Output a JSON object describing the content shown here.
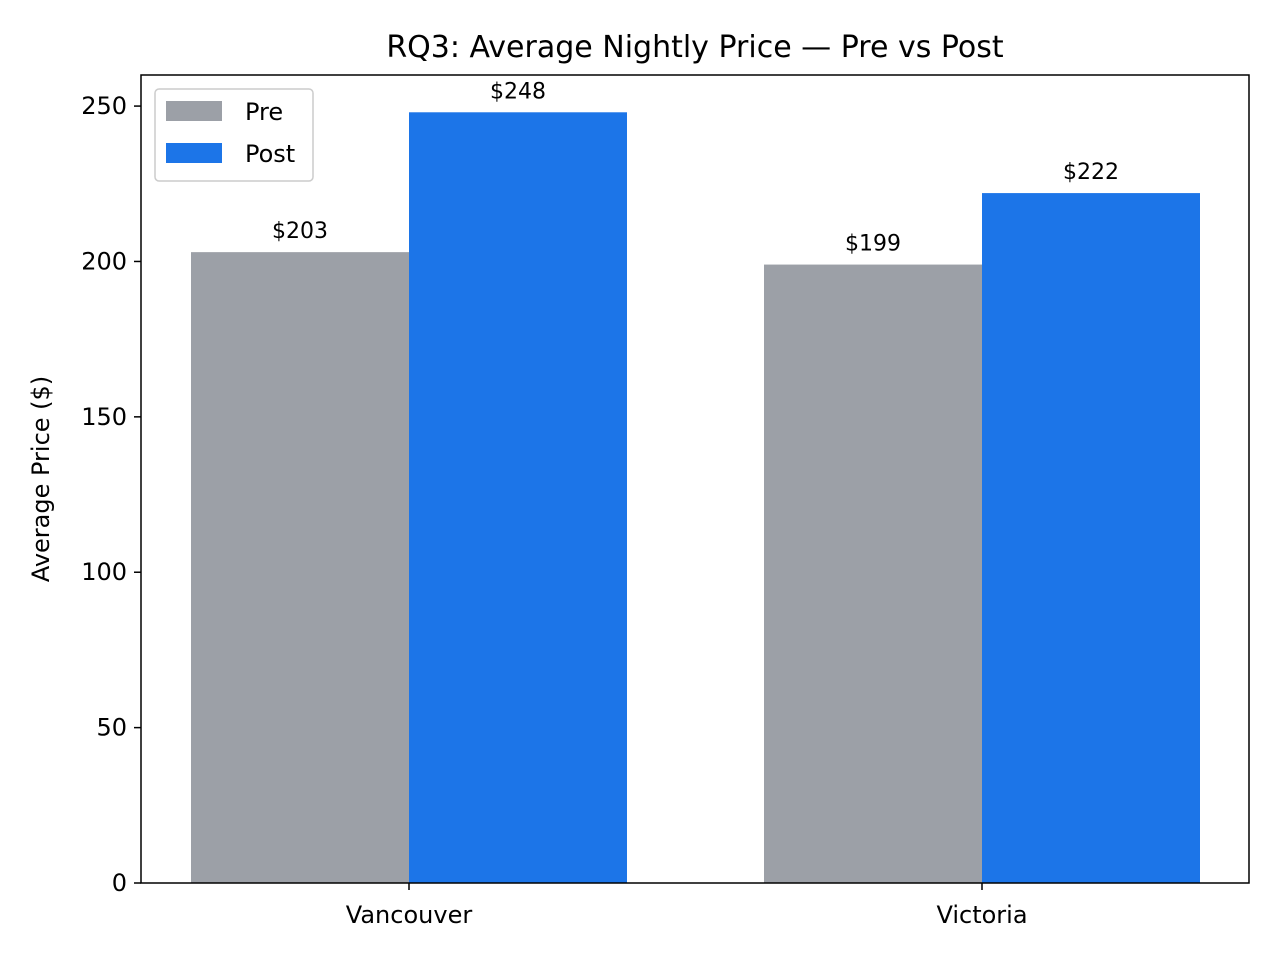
{
  "chart_data": {
    "type": "bar",
    "title": "RQ3: Average Nightly Price — Pre vs Post",
    "xlabel": "",
    "ylabel": "Average Price ($)",
    "categories": [
      "Vancouver",
      "Victoria"
    ],
    "series": [
      {
        "name": "Pre",
        "values": [
          203,
          199
        ],
        "labels": [
          "$203",
          "$199"
        ],
        "color": "#9ca0a7"
      },
      {
        "name": "Post",
        "values": [
          248,
          222
        ],
        "labels": [
          "$248",
          "$222"
        ],
        "color": "#1c75e8"
      }
    ],
    "ylim": [
      0,
      260
    ],
    "yticks": [
      0,
      50,
      100,
      150,
      200,
      250
    ],
    "grid": false,
    "legend": "upper left"
  }
}
